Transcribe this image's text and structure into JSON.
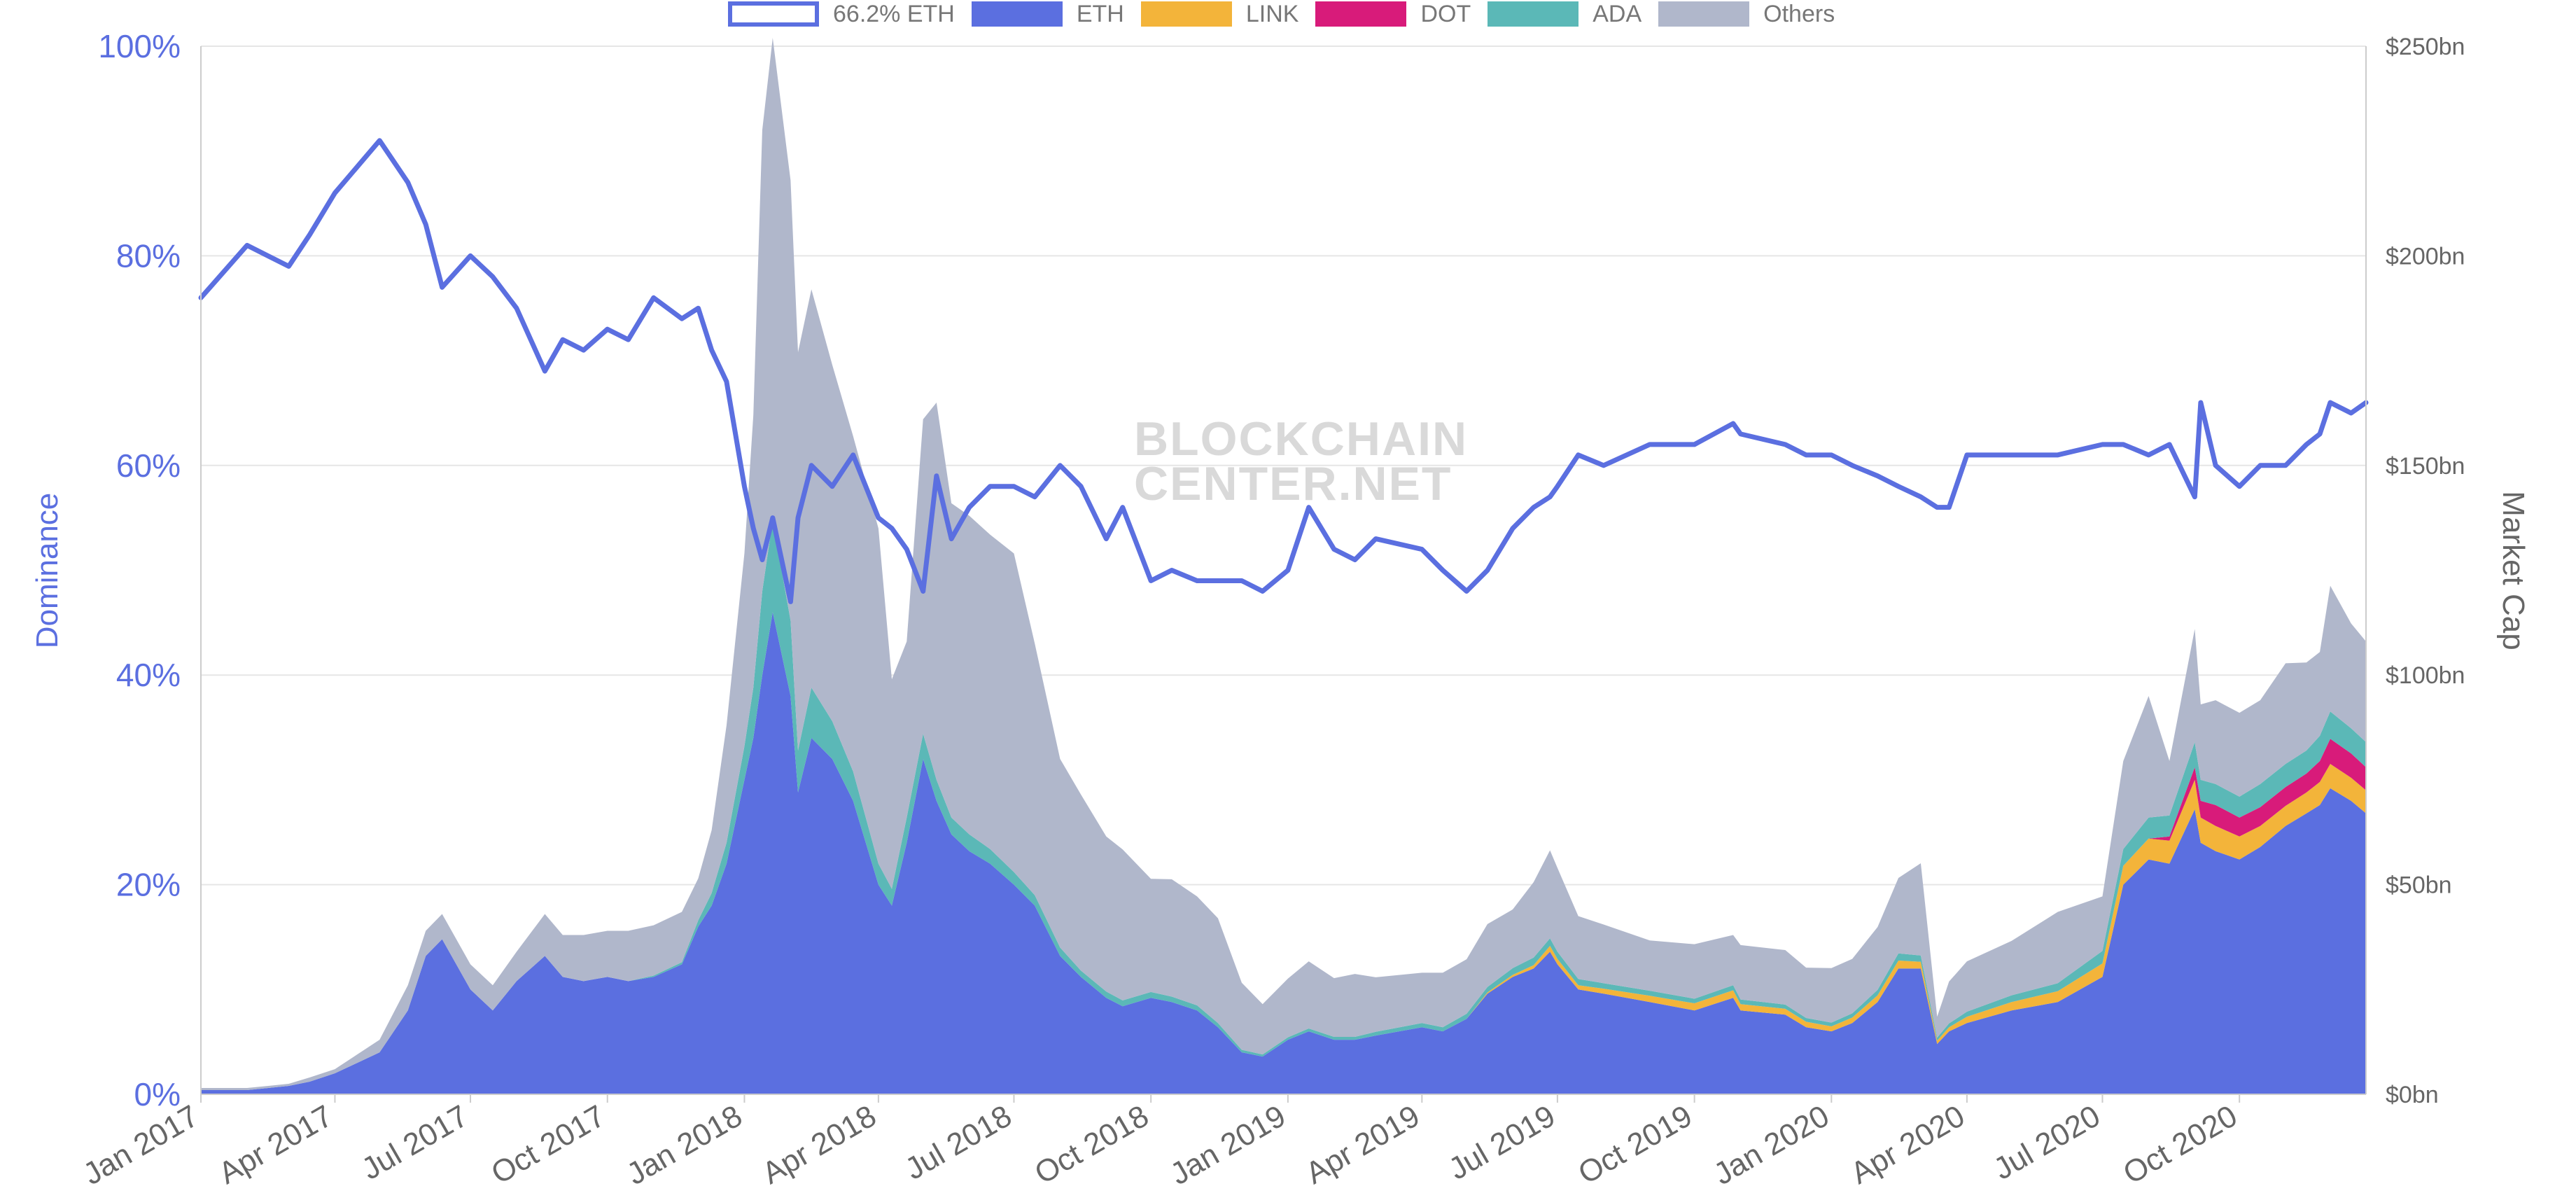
{
  "legend": [
    {
      "label": "66.2% ETH",
      "color": "#5b6fe0",
      "kind": "outline"
    },
    {
      "label": "ETH",
      "color": "#5b6fe0",
      "kind": "fill"
    },
    {
      "label": "LINK",
      "color": "#f3b43a",
      "kind": "fill"
    },
    {
      "label": "DOT",
      "color": "#d81b7a",
      "kind": "fill"
    },
    {
      "label": "ADA",
      "color": "#5bb8b7",
      "kind": "fill"
    },
    {
      "label": "Others",
      "color": "#b0b7cb",
      "kind": "fill"
    }
  ],
  "watermark": {
    "line1": "BLOCKCHAIN",
    "line2": "CENTER.NET"
  },
  "chart_data": {
    "type": "area",
    "x_axis": {
      "type": "date",
      "range": [
        "2017-01-01",
        "2020-12-25"
      ],
      "tick_labels": [
        "Jan 2017",
        "Apr 2017",
        "Jul 2017",
        "Oct 2017",
        "Jan 2018",
        "Apr 2018",
        "Jul 2018",
        "Oct 2018",
        "Jan 2019",
        "Apr 2019",
        "Jul 2019",
        "Oct 2019",
        "Jan 2020",
        "Apr 2020",
        "Jul 2020",
        "Oct 2020"
      ]
    },
    "y_left": {
      "label": "Dominance",
      "range": [
        0,
        100
      ],
      "ticks": [
        "0%",
        "20%",
        "40%",
        "60%",
        "80%",
        "100%"
      ]
    },
    "y_right": {
      "label": "Market Cap",
      "range": [
        0,
        250
      ],
      "ticks": [
        "$0bn",
        "$50bn",
        "$100bn",
        "$150bn",
        "$200bn",
        "$250bn"
      ]
    },
    "grid": true,
    "legend_position": "top",
    "dates": [
      "2017-01-01",
      "2017-02-01",
      "2017-03-01",
      "2017-03-15",
      "2017-04-01",
      "2017-05-01",
      "2017-05-20",
      "2017-06-01",
      "2017-06-12",
      "2017-07-01",
      "2017-07-16",
      "2017-08-01",
      "2017-08-20",
      "2017-09-01",
      "2017-09-15",
      "2017-10-01",
      "2017-10-15",
      "2017-11-01",
      "2017-11-20",
      "2017-12-01",
      "2017-12-10",
      "2017-12-20",
      "2018-01-01",
      "2018-01-07",
      "2018-01-13",
      "2018-01-20",
      "2018-02-01",
      "2018-02-06",
      "2018-02-15",
      "2018-03-01",
      "2018-03-15",
      "2018-04-01",
      "2018-04-10",
      "2018-04-20",
      "2018-05-01",
      "2018-05-10",
      "2018-05-20",
      "2018-06-01",
      "2018-06-15",
      "2018-07-01",
      "2018-07-15",
      "2018-08-01",
      "2018-08-15",
      "2018-09-01",
      "2018-09-12",
      "2018-10-01",
      "2018-10-15",
      "2018-11-01",
      "2018-11-15",
      "2018-12-01",
      "2018-12-15",
      "2019-01-01",
      "2019-01-15",
      "2019-02-01",
      "2019-02-15",
      "2019-03-01",
      "2019-04-01",
      "2019-04-15",
      "2019-05-01",
      "2019-05-15",
      "2019-06-01",
      "2019-06-15",
      "2019-06-26",
      "2019-07-01",
      "2019-07-15",
      "2019-08-01",
      "2019-09-01",
      "2019-10-01",
      "2019-10-27",
      "2019-11-01",
      "2019-12-01",
      "2019-12-15",
      "2020-01-01",
      "2020-01-15",
      "2020-02-01",
      "2020-02-15",
      "2020-03-01",
      "2020-03-12",
      "2020-03-20",
      "2020-04-01",
      "2020-05-01",
      "2020-06-01",
      "2020-07-01",
      "2020-07-15",
      "2020-08-01",
      "2020-08-15",
      "2020-09-01",
      "2020-09-05",
      "2020-09-15",
      "2020-10-01",
      "2020-10-15",
      "2020-11-01",
      "2020-11-15",
      "2020-11-24",
      "2020-12-01",
      "2020-12-15",
      "2020-12-25"
    ],
    "series": [
      {
        "name": "ETH",
        "axis": "right",
        "color": "#5b6fe0",
        "values": [
          1,
          1,
          2,
          3,
          5,
          10,
          20,
          33,
          37,
          25,
          20,
          27,
          33,
          28,
          27,
          28,
          27,
          28,
          31,
          40,
          45,
          55,
          75,
          85,
          100,
          115,
          95,
          72,
          85,
          80,
          70,
          50,
          45,
          60,
          80,
          70,
          62,
          58,
          55,
          50,
          45,
          33,
          28,
          23,
          21,
          23,
          22,
          20,
          16,
          10,
          9,
          13,
          15,
          13,
          13,
          14,
          16,
          15,
          18,
          24,
          28,
          30,
          34,
          31,
          25,
          24,
          22,
          20,
          23,
          20,
          19,
          16,
          15,
          17,
          22,
          30,
          30,
          12,
          15,
          17,
          20,
          22,
          28,
          50,
          56,
          55,
          68,
          60,
          58,
          56,
          59,
          64,
          67,
          69,
          73,
          70,
          67
        ]
      },
      {
        "name": "LINK",
        "axis": "right",
        "color": "#f3b43a",
        "values": [
          0,
          0,
          0,
          0,
          0,
          0,
          0,
          0,
          0,
          0,
          0,
          0,
          0,
          0,
          0,
          0,
          0,
          0,
          0,
          0,
          0,
          0,
          0,
          0,
          0,
          0,
          0,
          0,
          0,
          0,
          0,
          0,
          0,
          0,
          0,
          0,
          0,
          0,
          0,
          0,
          0,
          0,
          0,
          0,
          0,
          0,
          0,
          0,
          0,
          0,
          0,
          0,
          0,
          0,
          0,
          0,
          0,
          0,
          0,
          0.3,
          0.5,
          0.8,
          1.4,
          1.3,
          1,
          1.2,
          1.5,
          1.7,
          1.8,
          1.5,
          1.4,
          1.3,
          1.2,
          1.3,
          1.6,
          1.9,
          1.6,
          0.8,
          1,
          1.5,
          2,
          2.6,
          3.2,
          4.5,
          5,
          5.5,
          7,
          6,
          6,
          5.5,
          5,
          4.8,
          5,
          5.5,
          5.8,
          5.5,
          5.5
        ]
      },
      {
        "name": "DOT",
        "axis": "right",
        "color": "#d81b7a",
        "values": [
          0,
          0,
          0,
          0,
          0,
          0,
          0,
          0,
          0,
          0,
          0,
          0,
          0,
          0,
          0,
          0,
          0,
          0,
          0,
          0,
          0,
          0,
          0,
          0,
          0,
          0,
          0,
          0,
          0,
          0,
          0,
          0,
          0,
          0,
          0,
          0,
          0,
          0,
          0,
          0,
          0,
          0,
          0,
          0,
          0,
          0,
          0,
          0,
          0,
          0,
          0,
          0,
          0,
          0,
          0,
          0,
          0,
          0,
          0,
          0,
          0,
          0,
          0,
          0,
          0,
          0,
          0,
          0,
          0,
          0,
          0,
          0,
          0,
          0,
          0,
          0,
          0,
          0,
          0,
          0,
          0,
          0,
          0,
          0,
          0,
          1,
          3,
          4,
          5,
          4.5,
          4.5,
          4.5,
          4.5,
          5,
          6,
          5.8,
          5.5
        ]
      },
      {
        "name": "ADA",
        "axis": "right",
        "color": "#5bb8b7",
        "values": [
          0,
          0,
          0,
          0,
          0,
          0,
          0,
          0,
          0,
          0,
          0,
          0,
          0,
          0,
          0,
          0,
          0,
          0.3,
          0.5,
          1.5,
          3,
          5,
          8,
          12,
          20,
          22,
          18,
          10,
          12,
          9,
          7,
          5,
          4,
          6,
          6,
          5,
          4,
          4,
          3.5,
          3,
          2.5,
          2,
          1.5,
          1.5,
          1.4,
          1.4,
          1.3,
          1.2,
          1,
          0.6,
          0.5,
          0.6,
          0.7,
          0.7,
          0.7,
          0.9,
          1,
          1,
          1.2,
          1.3,
          1.6,
          1.8,
          1.8,
          1.7,
          1.5,
          1.3,
          1.2,
          1.1,
          1.2,
          1.1,
          1,
          0.9,
          0.9,
          1,
          1.3,
          1.7,
          1.5,
          0.7,
          0.9,
          1.2,
          1.6,
          1.9,
          3,
          4,
          5,
          5,
          6,
          5,
          5,
          5,
          5.5,
          5.5,
          5.5,
          6,
          6.5,
          6,
          6
        ]
      },
      {
        "name": "Others",
        "axis": "right",
        "color": "#b0b7cb",
        "values": [
          0.5,
          0.5,
          0.5,
          1,
          1,
          3,
          6,
          6,
          6,
          6,
          6,
          7,
          10,
          10,
          11,
          11,
          12,
          12,
          12,
          10,
          15,
          28,
          46,
          65,
          110,
          115,
          105,
          95,
          95,
          85,
          80,
          80,
          50,
          42,
          75,
          90,
          75,
          76,
          75,
          76,
          60,
          45,
          42,
          37,
          36,
          27,
          28,
          26,
          25,
          16,
          12,
          14,
          16,
          14,
          15,
          13,
          12,
          13,
          13,
          15,
          14,
          18,
          21,
          20,
          15,
          14,
          12,
          13,
          12,
          13,
          13,
          12,
          13,
          13,
          15,
          18,
          22,
          5,
          10,
          12,
          13,
          17,
          13,
          21,
          29,
          13,
          27,
          18,
          20,
          20,
          20,
          24,
          21,
          20,
          30,
          25,
          24
        ]
      },
      {
        "name": "66.2% ETH",
        "axis": "left",
        "kind": "line",
        "color": "#5b6fe0",
        "values": [
          76,
          81,
          79,
          82,
          86,
          91,
          87,
          83,
          77,
          80,
          78,
          75,
          69,
          72,
          71,
          73,
          72,
          76,
          74,
          75,
          71,
          68,
          58,
          54,
          51,
          55,
          47,
          55,
          60,
          58,
          61,
          55,
          54,
          52,
          48,
          59,
          53,
          56,
          58,
          58,
          57,
          60,
          58,
          53,
          56,
          49,
          50,
          49,
          49,
          49,
          48,
          50,
          56,
          52,
          51,
          53,
          52,
          50,
          48,
          50,
          54,
          56,
          57,
          58,
          61,
          60,
          62,
          62,
          64,
          63,
          62,
          61,
          61,
          60,
          59,
          58,
          57,
          56,
          56,
          61,
          61,
          61,
          62,
          62,
          61,
          62,
          57,
          66,
          60,
          58,
          60,
          60,
          62,
          63,
          66,
          65,
          66
        ]
      }
    ]
  }
}
